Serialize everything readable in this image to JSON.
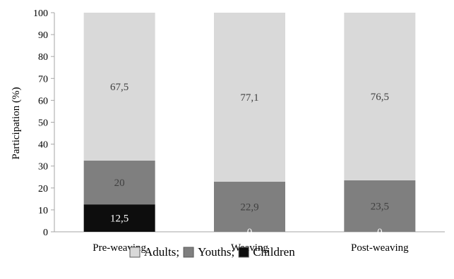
{
  "chart_data": {
    "type": "bar",
    "stacked": true,
    "ylabel": "Participation (%)",
    "xlabel": "",
    "ylim": [
      0,
      100
    ],
    "yticks": [
      0,
      10,
      20,
      30,
      40,
      50,
      60,
      70,
      80,
      90,
      100
    ],
    "categories": [
      "Pre-weaving",
      "Weaving",
      "Post-weaving"
    ],
    "series": [
      {
        "name": "Children",
        "values": [
          12.5,
          0,
          0
        ],
        "labels": [
          "12,5",
          "0",
          "0"
        ],
        "color": "#0d0d0d",
        "label_color": "#ffffff"
      },
      {
        "name": "Youths",
        "values": [
          20,
          22.9,
          23.5
        ],
        "labels": [
          "20",
          "22,9",
          "23,5"
        ],
        "color": "#7f7f7f",
        "label_color": "#404040"
      },
      {
        "name": "Adults",
        "values": [
          67.5,
          77.1,
          76.5
        ],
        "labels": [
          "67,5",
          "77,1",
          "76,5"
        ],
        "color": "#d9d9d9",
        "label_color": "#404040"
      }
    ],
    "legend": {
      "placement": "bottom",
      "entries": [
        "Adults;",
        "Youths;",
        "Children"
      ],
      "colors": [
        "#d9d9d9",
        "#7f7f7f",
        "#0d0d0d"
      ]
    },
    "grid": false
  }
}
